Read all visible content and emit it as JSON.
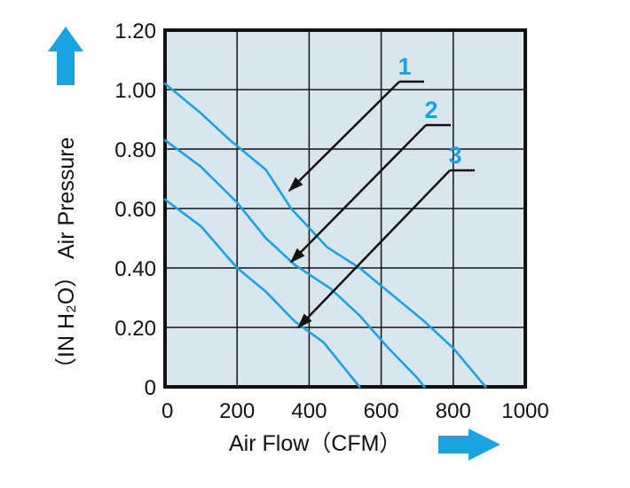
{
  "chart_data": {
    "type": "line",
    "xlabel": "Air Flow（CFM）",
    "ylabel": "Air Pressure",
    "ylabel_unit": "（IN H₂O）",
    "xlim": [
      0,
      1000
    ],
    "ylim": [
      0,
      1.2
    ],
    "x_ticks": [
      "0",
      "200",
      "400",
      "600",
      "800",
      "1000"
    ],
    "y_ticks": [
      "0",
      "0.20",
      "0.40",
      "0.60",
      "0.80",
      "1.00",
      "1.20"
    ],
    "grid": true,
    "colors": {
      "plot_background": "#d9e6ee",
      "curve": "#1ba3e0",
      "arrow": "#1ba3e0",
      "grid": "#111111",
      "leader": "#111111"
    },
    "series": [
      {
        "name": "1",
        "x": [
          0,
          100,
          180,
          280,
          350,
          450,
          540,
          620,
          720,
          800,
          890
        ],
        "y": [
          1.02,
          0.92,
          0.83,
          0.73,
          0.6,
          0.47,
          0.4,
          0.32,
          0.22,
          0.13,
          0.0
        ]
      },
      {
        "name": "2",
        "x": [
          0,
          100,
          200,
          280,
          360,
          460,
          540,
          620,
          700,
          720
        ],
        "y": [
          0.83,
          0.74,
          0.62,
          0.5,
          0.41,
          0.33,
          0.24,
          0.13,
          0.03,
          0.0
        ]
      },
      {
        "name": "3",
        "x": [
          0,
          100,
          200,
          280,
          360,
          440,
          500,
          540
        ],
        "y": [
          0.63,
          0.54,
          0.4,
          0.32,
          0.22,
          0.15,
          0.06,
          0.0
        ]
      }
    ],
    "annotations": [
      {
        "label": "1",
        "target": [
          345,
          0.66
        ]
      },
      {
        "label": "2",
        "target": [
          350,
          0.42
        ]
      },
      {
        "label": "3",
        "target": [
          370,
          0.2
        ]
      }
    ]
  }
}
